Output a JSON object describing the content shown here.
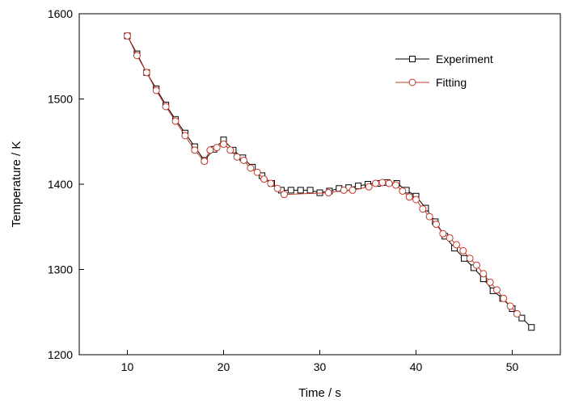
{
  "chart_data": {
    "type": "line",
    "title": "",
    "xlabel": "Time / s",
    "ylabel": "Temperature / K",
    "xlim": [
      5,
      55
    ],
    "ylim": [
      1200,
      1600
    ],
    "xticks": [
      10,
      20,
      30,
      40,
      50
    ],
    "yticks": [
      1200,
      1300,
      1400,
      1500,
      1600
    ],
    "grid": false,
    "legend_position": "top-right",
    "series": [
      {
        "name": "Experiment",
        "color": "#000000",
        "marker": "square",
        "x": [
          10,
          11,
          12,
          13,
          14,
          15,
          16,
          17,
          18,
          19,
          20,
          21,
          22,
          23,
          24,
          25,
          26,
          27,
          28,
          29,
          30,
          31,
          32,
          33,
          34,
          35,
          36,
          37,
          38,
          39,
          40,
          41,
          42,
          43,
          44,
          45,
          46,
          47,
          48,
          49,
          50,
          51,
          52
        ],
        "y": [
          1574,
          1553,
          1531,
          1512,
          1493,
          1476,
          1460,
          1444,
          1428,
          1441,
          1452,
          1440,
          1431,
          1420,
          1410,
          1401,
          1393,
          1393,
          1393,
          1393,
          1390,
          1392,
          1395,
          1396,
          1398,
          1400,
          1401,
          1402,
          1401,
          1393,
          1386,
          1372,
          1356,
          1339,
          1325,
          1313,
          1302,
          1289,
          1275,
          1266,
          1254,
          1243,
          1232
        ]
      },
      {
        "name": "Fitting",
        "color": "#c0392b",
        "marker": "circle",
        "x": [
          10,
          11,
          12,
          13,
          14,
          15,
          16,
          17,
          18,
          18.6,
          19.3,
          20,
          20.7,
          21.4,
          22.1,
          22.8,
          23.5,
          24.2,
          24.9,
          25.6,
          26.3,
          30.9,
          32.5,
          33.4,
          35.1,
          35.8,
          36.5,
          37.2,
          37.9,
          38.6,
          39.3,
          40,
          40.7,
          41.4,
          42.1,
          42.8,
          43.5,
          44.2,
          44.9,
          45.6,
          46.3,
          47,
          47.7,
          48.4,
          49.1,
          49.8,
          50.5
        ],
        "y": [
          1574,
          1551,
          1531,
          1510,
          1491,
          1474,
          1457,
          1440,
          1427,
          1440,
          1443,
          1447,
          1440,
          1432,
          1428,
          1419,
          1414,
          1406,
          1401,
          1395,
          1388,
          1390,
          1393,
          1393,
          1397,
          1401,
          1402,
          1401,
          1399,
          1392,
          1385,
          1382,
          1371,
          1362,
          1353,
          1342,
          1337,
          1329,
          1322,
          1313,
          1305,
          1295,
          1285,
          1276,
          1266,
          1257,
          1248
        ]
      }
    ]
  }
}
